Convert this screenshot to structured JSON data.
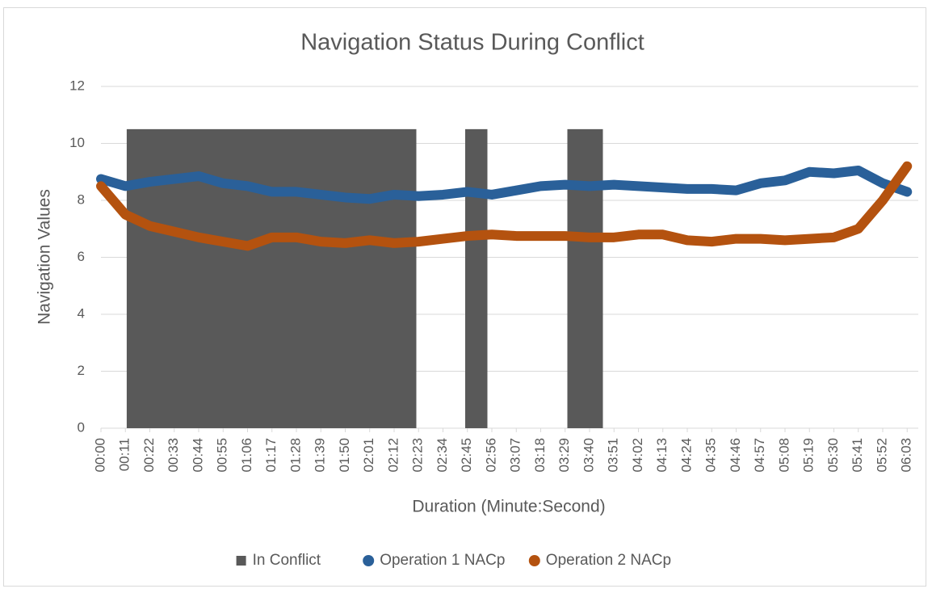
{
  "chart_data": {
    "type": "line",
    "title": "Navigation Status During Conflict",
    "x_label": "Duration (Minute:Second)",
    "y_label": "Navigation Values",
    "xlim": [
      0,
      368
    ],
    "ylim": [
      0,
      12
    ],
    "yticks": [
      0,
      2,
      4,
      6,
      8,
      10,
      12
    ],
    "xticks": [
      {
        "value": 0,
        "label": "00:00"
      },
      {
        "value": 11,
        "label": "00:11"
      },
      {
        "value": 22,
        "label": "00:22"
      },
      {
        "value": 33,
        "label": "00:33"
      },
      {
        "value": 44,
        "label": "00:44"
      },
      {
        "value": 55,
        "label": "00:55"
      },
      {
        "value": 66,
        "label": "01:06"
      },
      {
        "value": 77,
        "label": "01:17"
      },
      {
        "value": 88,
        "label": "01:28"
      },
      {
        "value": 99,
        "label": "01:39"
      },
      {
        "value": 110,
        "label": "01:50"
      },
      {
        "value": 121,
        "label": "02:01"
      },
      {
        "value": 132,
        "label": "02:12"
      },
      {
        "value": 143,
        "label": "02:23"
      },
      {
        "value": 154,
        "label": "02:34"
      },
      {
        "value": 165,
        "label": "02:45"
      },
      {
        "value": 176,
        "label": "02:56"
      },
      {
        "value": 187,
        "label": "03:07"
      },
      {
        "value": 198,
        "label": "03:18"
      },
      {
        "value": 209,
        "label": "03:29"
      },
      {
        "value": 220,
        "label": "03:40"
      },
      {
        "value": 231,
        "label": "03:51"
      },
      {
        "value": 242,
        "label": "04:02"
      },
      {
        "value": 253,
        "label": "04:13"
      },
      {
        "value": 264,
        "label": "04:24"
      },
      {
        "value": 275,
        "label": "04:35"
      },
      {
        "value": 286,
        "label": "04:46"
      },
      {
        "value": 297,
        "label": "04:57"
      },
      {
        "value": 308,
        "label": "05:08"
      },
      {
        "value": 319,
        "label": "05:19"
      },
      {
        "value": 330,
        "label": "05:30"
      },
      {
        "value": 341,
        "label": "05:41"
      },
      {
        "value": 352,
        "label": "05:52"
      },
      {
        "value": 363,
        "label": "06:03"
      }
    ],
    "grid": true,
    "legend": "bottom",
    "series": [
      {
        "name": "In Conflict",
        "type": "area",
        "color": "#595959",
        "x": [
          11.6,
          142,
          150,
          164,
          174,
          190,
          210,
          226
        ],
        "values": [
          10.5,
          10.5,
          null,
          10.5,
          10.5,
          null,
          10.5,
          10.5
        ]
      },
      {
        "name": "Operation 1 NACp",
        "color": "#2a6099",
        "x": [
          0,
          11,
          22,
          33,
          44,
          55,
          66,
          77,
          88,
          99,
          110,
          121,
          132,
          143,
          154,
          165,
          176,
          187,
          198,
          209,
          220,
          231,
          242,
          253,
          264,
          275,
          286,
          297,
          308,
          319,
          330,
          341,
          352,
          363
        ],
        "values": [
          8.75,
          8.5,
          8.65,
          8.75,
          8.85,
          8.6,
          8.5,
          8.3,
          8.3,
          8.2,
          8.1,
          8.05,
          8.2,
          8.15,
          8.2,
          8.3,
          8.2,
          8.35,
          8.5,
          8.55,
          8.5,
          8.55,
          8.5,
          8.45,
          8.4,
          8.4,
          8.35,
          8.6,
          8.7,
          9.0,
          8.95,
          9.05,
          8.6,
          8.3
        ]
      },
      {
        "name": "Operation 2 NACp",
        "color": "#b4520f",
        "x": [
          0,
          11,
          22,
          33,
          44,
          55,
          66,
          77,
          88,
          99,
          110,
          121,
          132,
          143,
          154,
          165,
          176,
          187,
          198,
          209,
          220,
          231,
          242,
          253,
          264,
          275,
          286,
          297,
          308,
          319,
          330,
          341,
          352,
          363
        ],
        "values": [
          8.5,
          7.5,
          7.1,
          6.9,
          6.7,
          6.55,
          6.4,
          6.7,
          6.7,
          6.55,
          6.5,
          6.6,
          6.5,
          6.55,
          6.65,
          6.75,
          6.8,
          6.75,
          6.75,
          6.75,
          6.7,
          6.7,
          6.8,
          6.8,
          6.6,
          6.55,
          6.65,
          6.65,
          6.6,
          6.65,
          6.7,
          7.0,
          8.0,
          9.2
        ]
      }
    ]
  }
}
